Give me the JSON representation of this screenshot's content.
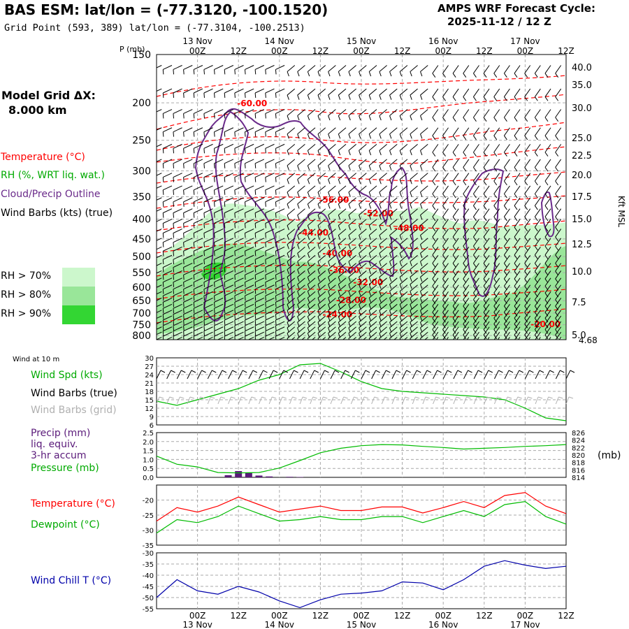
{
  "header": {
    "title": "BAS ESM:  lat/lon = (-77.3120, -100.1520)",
    "grid_point": "Grid Point (593, 389) lat/lon = (-77.3104, -100.2513)",
    "cycle_label": "AMPS WRF Forecast Cycle:",
    "cycle_value": "2025-11-12 / 12  Z"
  },
  "side": {
    "model_grid_label": "Model Grid ΔX:",
    "model_grid_value": "8.000 km",
    "temperature_label": "Temperature (°C)",
    "rh_label": "RH (%, WRT liq. wat.)",
    "cloud_label": "Cloud/Precip Outline",
    "wind_label": "Wind Barbs (kts) (true)",
    "rh70": "RH > 70%",
    "rh80": "RH > 80%",
    "rh90": "RH > 90%"
  },
  "colors": {
    "temperature": "#ff0000",
    "rh_text": "#00aa00",
    "cloud": "#6a2a8a",
    "rh70": "#ccf7cc",
    "rh80": "#99e699",
    "rh90": "#33d633",
    "wind_speed": "#00bb00",
    "wind_chill": "#0000aa",
    "precip": "#5a1a7a",
    "grid_barbs": "#b0b0b0"
  },
  "chart_data": [
    {
      "type": "cross-section",
      "id": "upper_panel",
      "yaxis_label": "P (mb)",
      "right_axis_label": "Kft MSL",
      "pressure_ticks": [
        150,
        200,
        250,
        300,
        350,
        400,
        450,
        500,
        550,
        600,
        650,
        700,
        750,
        800
      ],
      "pressure_range": [
        150,
        820
      ],
      "height_ticks": [
        "40.0",
        "35.0",
        "30.0",
        "25.0",
        "22.5",
        "20.0",
        "17.5",
        "15.0",
        "12.5",
        "10.0",
        "7.5",
        "5.0"
      ],
      "surface_height_label": "4.68",
      "time_ticks_top": [
        "00Z",
        "12Z",
        "00Z",
        "12Z",
        "00Z",
        "12Z",
        "00Z",
        "12Z",
        "00Z",
        "12Z"
      ],
      "date_labels_top": [
        "13 Nov",
        "14 Nov",
        "15 Nov",
        "16 Nov",
        "17 Nov"
      ],
      "forecast_hours": [
        0,
        120
      ],
      "temperature_contour_labels": [
        {
          "value": "-60.00",
          "hour": 28,
          "p": 200
        },
        {
          "value": "-56.00",
          "hour": 52,
          "p": 355
        },
        {
          "value": "-52.00",
          "hour": 65,
          "p": 385
        },
        {
          "value": "-48.00",
          "hour": 74,
          "p": 420
        },
        {
          "value": "-44.00",
          "hour": 46,
          "p": 432
        },
        {
          "value": "-40.00",
          "hour": 53,
          "p": 488
        },
        {
          "value": "-36.00",
          "hour": 55,
          "p": 540
        },
        {
          "value": "-32.00",
          "hour": 62,
          "p": 580
        },
        {
          "value": "-28.00",
          "hour": 57,
          "p": 645
        },
        {
          "value": "-24.00",
          "hour": 53,
          "p": 703
        },
        {
          "value": "-20.00",
          "hour": 114,
          "p": 745
        }
      ]
    },
    {
      "type": "line",
      "id": "wind10m",
      "title": "Wind at 10 m",
      "series_label": "Wind Spd (kts)",
      "barbs_true_label": "Wind Barbs (true)",
      "barbs_grid_label": "Wind Barbs (grid)",
      "ylim": [
        6,
        30
      ],
      "yticks": [
        "30",
        "27",
        "24",
        "21",
        "18",
        "15",
        "12",
        "9",
        "6"
      ],
      "x_hours": [
        0,
        6,
        12,
        18,
        24,
        30,
        36,
        42,
        48,
        54,
        60,
        66,
        72,
        78,
        84,
        90,
        96,
        102,
        108,
        114,
        120
      ],
      "values": [
        14.5,
        13,
        15,
        17,
        19,
        22,
        24,
        27.5,
        28,
        25,
        21.5,
        19,
        18,
        17.5,
        17,
        16.5,
        16,
        15,
        12,
        8.5,
        7.5
      ]
    },
    {
      "type": "bar+line",
      "id": "precip_pressure",
      "precip_label": "Precip (mm)",
      "precip_label2": "liq. equiv.",
      "precip_label3": "3-hr accum",
      "pressure_label": "Pressure (mb)",
      "pressure_unit": "(mb)",
      "precip_ylim": [
        0,
        2.5
      ],
      "precip_yticks": [
        "2.5",
        "2.0",
        "1.5",
        "1.0",
        "0.5",
        "0.0"
      ],
      "pressure_ylim": [
        814,
        826
      ],
      "pressure_yticks": [
        "826",
        "824",
        "822",
        "820",
        "818",
        "816",
        "814"
      ],
      "precip_bars": [
        {
          "hour": 21,
          "value": 0.12
        },
        {
          "hour": 24,
          "value": 0.35
        },
        {
          "hour": 27,
          "value": 0.25
        },
        {
          "hour": 30,
          "value": 0.1
        },
        {
          "hour": 33,
          "value": 0.05
        },
        {
          "hour": 39,
          "value": 0.03
        },
        {
          "hour": 42,
          "value": 0.02
        }
      ],
      "x_hours": [
        0,
        6,
        12,
        18,
        24,
        30,
        36,
        42,
        48,
        54,
        60,
        66,
        72,
        78,
        84,
        90,
        96,
        102,
        108,
        114,
        120
      ],
      "pressure_values": [
        819.7,
        817.5,
        816.8,
        815.3,
        815.2,
        815.3,
        816.5,
        818.5,
        820.6,
        821.8,
        822.5,
        822.8,
        822.7,
        822.3,
        822.0,
        821.6,
        821.8,
        822.0,
        822.3,
        822.5,
        822.8
      ]
    },
    {
      "type": "line",
      "id": "temp_dewpoint",
      "temperature_label": "Temperature (°C)",
      "dewpoint_label": "Dewpoint (°C)",
      "ylim": [
        -35,
        -15
      ],
      "yticks": [
        "-20",
        "-25",
        "-30",
        "-35"
      ],
      "x_hours": [
        0,
        6,
        12,
        18,
        24,
        30,
        36,
        42,
        48,
        54,
        60,
        66,
        72,
        78,
        84,
        90,
        96,
        102,
        108,
        114,
        120
      ],
      "temperature": [
        -27,
        -22.5,
        -24,
        -22,
        -19,
        -21.5,
        -24,
        -23,
        -22,
        -23.5,
        -23.5,
        -22.3,
        -22.3,
        -24.3,
        -22.5,
        -20.5,
        -22.5,
        -18.5,
        -17.5,
        -22,
        -24.5
      ],
      "dewpoint": [
        -31,
        -26.5,
        -27.5,
        -25.5,
        -22,
        -24.5,
        -27,
        -26.5,
        -25.5,
        -26.5,
        -26.5,
        -25.5,
        -25.5,
        -27.5,
        -25.5,
        -23.5,
        -25.5,
        -21.5,
        -20.5,
        -25.5,
        -28
      ]
    },
    {
      "type": "line",
      "id": "wind_chill",
      "series_label": "Wind Chill T (°C)",
      "ylim": [
        -55,
        -30
      ],
      "yticks": [
        "-30",
        "-35",
        "-40",
        "-45",
        "-50",
        "-55"
      ],
      "time_ticks_bottom": [
        "00Z",
        "12Z",
        "00Z",
        "12Z",
        "00Z",
        "12Z",
        "00Z",
        "12Z",
        "00Z",
        "12Z"
      ],
      "date_labels_bottom": [
        "13 Nov",
        "14 Nov",
        "15 Nov",
        "16 Nov",
        "17 Nov"
      ],
      "x_hours": [
        0,
        6,
        12,
        18,
        24,
        30,
        36,
        42,
        48,
        54,
        60,
        66,
        72,
        78,
        84,
        90,
        96,
        102,
        108,
        114,
        120
      ],
      "values": [
        -50,
        -42,
        -47,
        -48.5,
        -45,
        -47.5,
        -51.5,
        -54.5,
        -51,
        -48.5,
        -48,
        -47,
        -43,
        -43.5,
        -46.5,
        -42,
        -36,
        -33.5,
        -35.5,
        -37,
        -36
      ]
    }
  ]
}
